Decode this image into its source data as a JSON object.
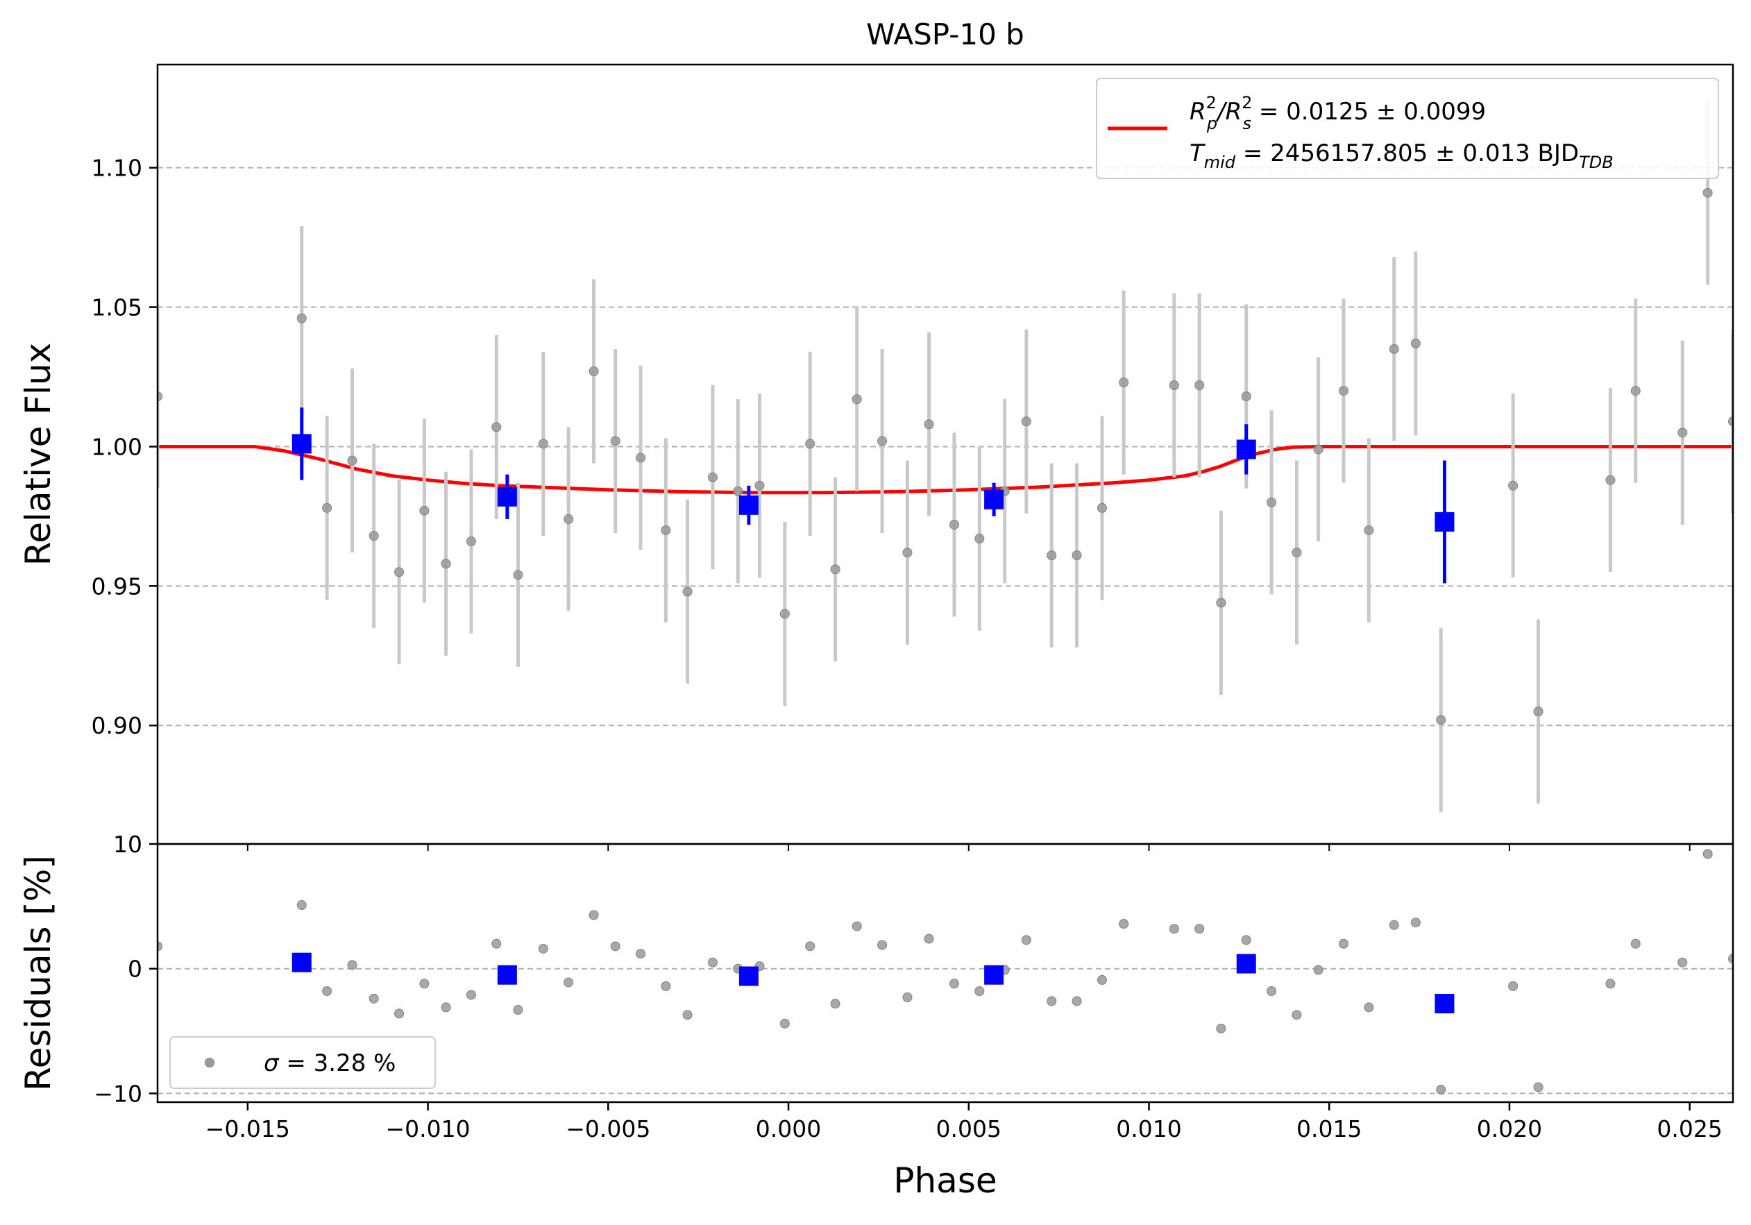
{
  "chart_data": {
    "type": "scatter",
    "title": "WASP-10 b",
    "xlabel": "Phase",
    "x_ticks": [
      -0.015,
      -0.01,
      -0.005,
      0.0,
      0.005,
      0.01,
      0.015,
      0.02,
      0.025
    ],
    "x_tick_labels": [
      "−0.015",
      "−0.010",
      "−0.005",
      "0.000",
      "0.005",
      "0.010",
      "0.015",
      "0.020",
      "0.025"
    ],
    "xlim": [
      -0.0175,
      0.0262
    ],
    "colors": {
      "raw": "#999999",
      "raw_err": "#c8c8c8",
      "binned": "#0000ff",
      "model": "#ff0000",
      "grid": "#b0b0b0"
    },
    "top_panel": {
      "ylabel": "Relative Flux",
      "ylim": [
        0.8575,
        1.137
      ],
      "y_ticks": [
        0.9,
        0.95,
        1.0,
        1.05,
        1.1
      ],
      "y_tick_labels": [
        "0.90",
        "0.95",
        "1.00",
        "1.05",
        "1.10"
      ],
      "grid": true,
      "legend": {
        "placement": "top-right",
        "line1": {
          "main": "R",
          "sup1": "2",
          "sub1": "p",
          "mid": "/R",
          "sup2": "2",
          "sub2": "s",
          "value": " = 0.0125 ± 0.0099"
        },
        "line2": {
          "main": "T",
          "sub": "mid",
          "value": " = 2456157.805 ± 0.013 BJD",
          "unit_sub": "TDB"
        }
      },
      "raw_points": [
        {
          "x": -0.0175,
          "y": 1.018,
          "err": 0.033
        },
        {
          "x": -0.0135,
          "y": 1.046,
          "err": 0.033
        },
        {
          "x": -0.0128,
          "y": 0.978,
          "err": 0.033
        },
        {
          "x": -0.0121,
          "y": 0.995,
          "err": 0.033
        },
        {
          "x": -0.0115,
          "y": 0.968,
          "err": 0.033
        },
        {
          "x": -0.0108,
          "y": 0.955,
          "err": 0.033
        },
        {
          "x": -0.0101,
          "y": 0.977,
          "err": 0.033
        },
        {
          "x": -0.0095,
          "y": 0.958,
          "err": 0.033
        },
        {
          "x": -0.0088,
          "y": 0.966,
          "err": 0.033
        },
        {
          "x": -0.0081,
          "y": 1.007,
          "err": 0.033
        },
        {
          "x": -0.0075,
          "y": 0.954,
          "err": 0.033
        },
        {
          "x": -0.0068,
          "y": 1.001,
          "err": 0.033
        },
        {
          "x": -0.0061,
          "y": 0.974,
          "err": 0.033
        },
        {
          "x": -0.0054,
          "y": 1.027,
          "err": 0.033
        },
        {
          "x": -0.0048,
          "y": 1.002,
          "err": 0.033
        },
        {
          "x": -0.0041,
          "y": 0.996,
          "err": 0.033
        },
        {
          "x": -0.0034,
          "y": 0.97,
          "err": 0.033
        },
        {
          "x": -0.0028,
          "y": 0.948,
          "err": 0.033
        },
        {
          "x": -0.0021,
          "y": 0.989,
          "err": 0.033
        },
        {
          "x": -0.0014,
          "y": 0.984,
          "err": 0.033
        },
        {
          "x": -0.0008,
          "y": 0.986,
          "err": 0.033
        },
        {
          "x": -0.0001,
          "y": 0.94,
          "err": 0.033
        },
        {
          "x": 0.0006,
          "y": 1.001,
          "err": 0.033
        },
        {
          "x": 0.0013,
          "y": 0.956,
          "err": 0.033
        },
        {
          "x": 0.0019,
          "y": 1.017,
          "err": 0.033
        },
        {
          "x": 0.0026,
          "y": 1.002,
          "err": 0.033
        },
        {
          "x": 0.0033,
          "y": 0.962,
          "err": 0.033
        },
        {
          "x": 0.0039,
          "y": 1.008,
          "err": 0.033
        },
        {
          "x": 0.0046,
          "y": 0.972,
          "err": 0.033
        },
        {
          "x": 0.0053,
          "y": 0.967,
          "err": 0.033
        },
        {
          "x": 0.006,
          "y": 0.984,
          "err": 0.033
        },
        {
          "x": 0.0066,
          "y": 1.009,
          "err": 0.033
        },
        {
          "x": 0.0073,
          "y": 0.961,
          "err": 0.033
        },
        {
          "x": 0.008,
          "y": 0.961,
          "err": 0.033
        },
        {
          "x": 0.0087,
          "y": 0.978,
          "err": 0.033
        },
        {
          "x": 0.0093,
          "y": 1.023,
          "err": 0.033
        },
        {
          "x": 0.0107,
          "y": 1.022,
          "err": 0.033
        },
        {
          "x": 0.0114,
          "y": 1.022,
          "err": 0.033
        },
        {
          "x": 0.012,
          "y": 0.944,
          "err": 0.033
        },
        {
          "x": 0.0127,
          "y": 1.018,
          "err": 0.033
        },
        {
          "x": 0.0134,
          "y": 0.98,
          "err": 0.033
        },
        {
          "x": 0.0141,
          "y": 0.962,
          "err": 0.033
        },
        {
          "x": 0.0147,
          "y": 0.999,
          "err": 0.033
        },
        {
          "x": 0.0154,
          "y": 1.02,
          "err": 0.033
        },
        {
          "x": 0.0161,
          "y": 0.97,
          "err": 0.033
        },
        {
          "x": 0.0168,
          "y": 1.035,
          "err": 0.033
        },
        {
          "x": 0.0174,
          "y": 1.037,
          "err": 0.033
        },
        {
          "x": 0.0181,
          "y": 0.902,
          "err": 0.033
        },
        {
          "x": 0.0201,
          "y": 0.986,
          "err": 0.033
        },
        {
          "x": 0.0208,
          "y": 0.905,
          "err": 0.033
        },
        {
          "x": 0.0228,
          "y": 0.988,
          "err": 0.033
        },
        {
          "x": 0.0235,
          "y": 1.02,
          "err": 0.033
        },
        {
          "x": 0.0248,
          "y": 1.005,
          "err": 0.033
        },
        {
          "x": 0.0255,
          "y": 1.091,
          "err": 0.033
        },
        {
          "x": 0.0262,
          "y": 1.009,
          "err": 0.033
        }
      ],
      "binned_points": [
        {
          "x": -0.0135,
          "y": 1.001,
          "err": 0.013
        },
        {
          "x": -0.0078,
          "y": 0.982,
          "err": 0.008
        },
        {
          "x": -0.0011,
          "y": 0.979,
          "err": 0.007
        },
        {
          "x": 0.0057,
          "y": 0.981,
          "err": 0.006
        },
        {
          "x": 0.0127,
          "y": 0.999,
          "err": 0.009
        },
        {
          "x": 0.0182,
          "y": 0.973,
          "err": 0.022
        }
      ],
      "model_curve": {
        "x": [
          -0.0175,
          -0.0148,
          -0.014,
          -0.013,
          -0.012,
          -0.011,
          -0.01,
          -0.009,
          -0.008,
          -0.007,
          -0.005,
          -0.003,
          -0.001,
          0.001,
          0.003,
          0.005,
          0.007,
          0.009,
          0.01,
          0.011,
          0.0115,
          0.012,
          0.0125,
          0.013,
          0.0135,
          0.014,
          0.0147,
          0.016,
          0.0262
        ],
        "y": [
          1.0,
          1.0,
          0.9985,
          0.9955,
          0.992,
          0.9895,
          0.988,
          0.9868,
          0.986,
          0.9855,
          0.9845,
          0.9838,
          0.9835,
          0.9835,
          0.9838,
          0.9845,
          0.9855,
          0.987,
          0.988,
          0.9895,
          0.991,
          0.993,
          0.9955,
          0.9975,
          0.999,
          0.9998,
          1.0,
          1.0,
          1.0
        ]
      }
    },
    "bottom_panel": {
      "ylabel": "Residuals [%]",
      "ylim": [
        -10.7,
        10
      ],
      "y_ticks": [
        -10,
        0,
        10
      ],
      "y_tick_labels": [
        "−10",
        "0",
        "10"
      ],
      "grid_lines": [
        -10,
        0
      ],
      "legend": {
        "placement": "bottom-left",
        "symbol": "σ",
        "value": " = 3.28 %"
      },
      "raw_points": [
        {
          "x": -0.0175,
          "y": 1.8
        },
        {
          "x": -0.0135,
          "y": 5.1
        },
        {
          "x": -0.0128,
          "y": -1.8
        },
        {
          "x": -0.0121,
          "y": 0.3
        },
        {
          "x": -0.0115,
          "y": -2.4
        },
        {
          "x": -0.0108,
          "y": -3.6
        },
        {
          "x": -0.0101,
          "y": -1.2
        },
        {
          "x": -0.0095,
          "y": -3.1
        },
        {
          "x": -0.0088,
          "y": -2.1
        },
        {
          "x": -0.0081,
          "y": 2.0
        },
        {
          "x": -0.0075,
          "y": -3.3
        },
        {
          "x": -0.0068,
          "y": 1.6
        },
        {
          "x": -0.0061,
          "y": -1.1
        },
        {
          "x": -0.0054,
          "y": 4.3
        },
        {
          "x": -0.0048,
          "y": 1.8
        },
        {
          "x": -0.0041,
          "y": 1.2
        },
        {
          "x": -0.0034,
          "y": -1.4
        },
        {
          "x": -0.0028,
          "y": -3.7
        },
        {
          "x": -0.0021,
          "y": 0.5
        },
        {
          "x": -0.0014,
          "y": 0.0
        },
        {
          "x": -0.0008,
          "y": 0.2
        },
        {
          "x": -0.0001,
          "y": -4.4
        },
        {
          "x": 0.0006,
          "y": 1.8
        },
        {
          "x": 0.0013,
          "y": -2.8
        },
        {
          "x": 0.0019,
          "y": 3.4
        },
        {
          "x": 0.0026,
          "y": 1.9
        },
        {
          "x": 0.0033,
          "y": -2.3
        },
        {
          "x": 0.0039,
          "y": 2.4
        },
        {
          "x": 0.0046,
          "y": -1.2
        },
        {
          "x": 0.0053,
          "y": -1.8
        },
        {
          "x": 0.006,
          "y": -0.1
        },
        {
          "x": 0.0066,
          "y": 2.3
        },
        {
          "x": 0.0073,
          "y": -2.6
        },
        {
          "x": 0.008,
          "y": -2.6
        },
        {
          "x": 0.0087,
          "y": -0.9
        },
        {
          "x": 0.0093,
          "y": 3.6
        },
        {
          "x": 0.0107,
          "y": 3.2
        },
        {
          "x": 0.0114,
          "y": 3.2
        },
        {
          "x": 0.012,
          "y": -4.8
        },
        {
          "x": 0.0127,
          "y": 2.3
        },
        {
          "x": 0.0134,
          "y": -1.8
        },
        {
          "x": 0.0141,
          "y": -3.7
        },
        {
          "x": 0.0147,
          "y": -0.1
        },
        {
          "x": 0.0154,
          "y": 2.0
        },
        {
          "x": 0.0161,
          "y": -3.1
        },
        {
          "x": 0.0168,
          "y": 3.5
        },
        {
          "x": 0.0174,
          "y": 3.7
        },
        {
          "x": 0.0181,
          "y": -9.7
        },
        {
          "x": 0.0201,
          "y": -1.4
        },
        {
          "x": 0.0208,
          "y": -9.5
        },
        {
          "x": 0.0228,
          "y": -1.2
        },
        {
          "x": 0.0235,
          "y": 2.0
        },
        {
          "x": 0.0248,
          "y": 0.5
        },
        {
          "x": 0.0255,
          "y": 9.2
        },
        {
          "x": 0.0262,
          "y": 0.8
        }
      ],
      "binned_points": [
        {
          "x": -0.0135,
          "y": 0.5
        },
        {
          "x": -0.0078,
          "y": -0.5
        },
        {
          "x": -0.0011,
          "y": -0.6
        },
        {
          "x": 0.0057,
          "y": -0.5
        },
        {
          "x": 0.0127,
          "y": 0.4
        },
        {
          "x": 0.0182,
          "y": -2.8
        }
      ]
    }
  }
}
